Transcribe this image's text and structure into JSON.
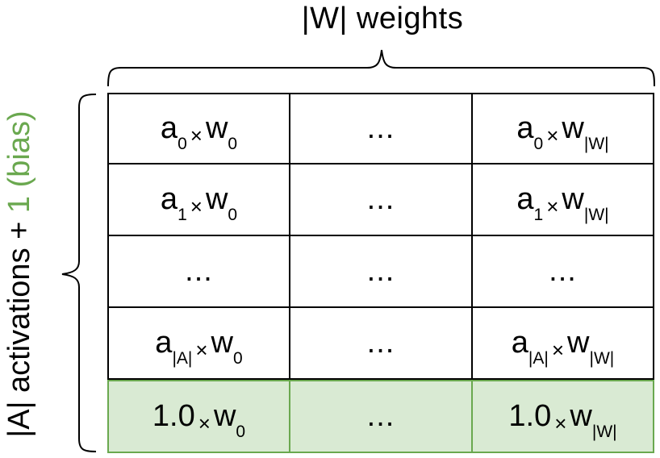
{
  "top_label": "|W| weights",
  "side_label": {
    "main": "|A| activations + ",
    "bias": "1 (bias)"
  },
  "colors": {
    "bias_fill": "#d9ead3",
    "bias_border": "#6aa84f",
    "bias_text": "#6aa84f"
  },
  "rows": [
    {
      "cells": [
        {
          "type": "expr",
          "base": "a",
          "sub1": "0",
          "times": "×",
          "weight": "w",
          "sub2": "0"
        },
        {
          "type": "dots",
          "text": "..."
        },
        {
          "type": "expr",
          "base": "a",
          "sub1": "0",
          "times": "×",
          "weight": "w",
          "sub2": "|W|"
        }
      ]
    },
    {
      "cells": [
        {
          "type": "expr",
          "base": "a",
          "sub1": "1",
          "times": "×",
          "weight": "w",
          "sub2": "0"
        },
        {
          "type": "dots",
          "text": "..."
        },
        {
          "type": "expr",
          "base": "a",
          "sub1": "1",
          "times": "×",
          "weight": "w",
          "sub2": "|W|"
        }
      ]
    },
    {
      "cells": [
        {
          "type": "dots",
          "text": "..."
        },
        {
          "type": "dots",
          "text": "..."
        },
        {
          "type": "dots",
          "text": "..."
        }
      ]
    },
    {
      "cells": [
        {
          "type": "expr",
          "base": "a",
          "sub1": "|A|",
          "times": "×",
          "weight": "w",
          "sub2": "0"
        },
        {
          "type": "dots",
          "text": "..."
        },
        {
          "type": "expr",
          "base": "a",
          "sub1": "|A|",
          "times": "×",
          "weight": "w",
          "sub2": "|W|"
        }
      ]
    },
    {
      "bias": true,
      "cells": [
        {
          "type": "expr",
          "base": "1.0",
          "sub1": "",
          "times": "×",
          "weight": "w",
          "sub2": "0"
        },
        {
          "type": "dots",
          "text": "..."
        },
        {
          "type": "expr",
          "base": "1.0",
          "sub1": "",
          "times": "×",
          "weight": "w",
          "sub2": "|W|"
        }
      ]
    }
  ]
}
